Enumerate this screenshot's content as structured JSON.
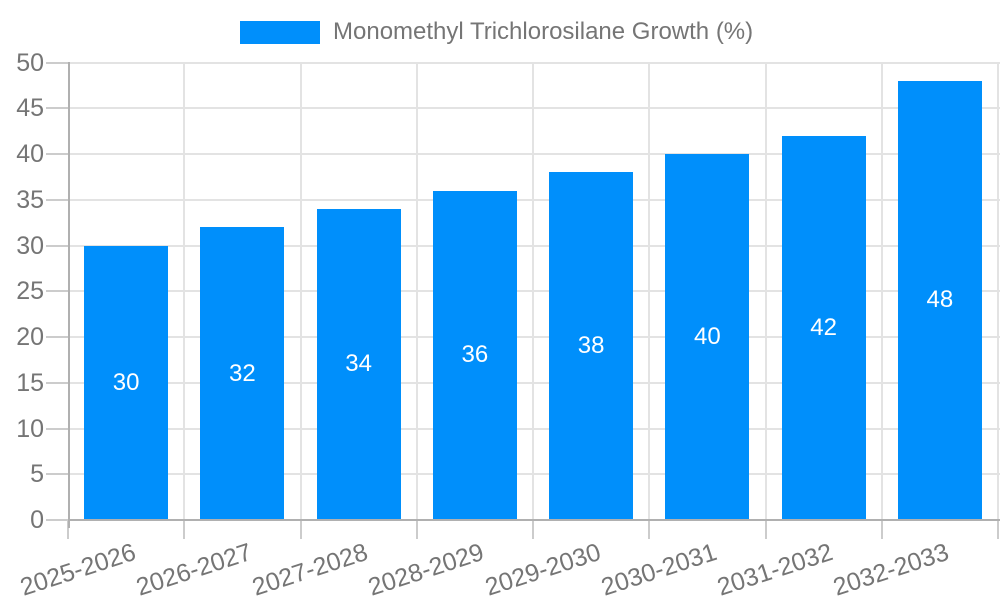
{
  "legend": {
    "label": "Monomethyl Trichlorosilane Growth (%)"
  },
  "chart_data": {
    "type": "bar",
    "title": "Monomethyl Trichlorosilane Growth (%)",
    "series": [
      {
        "name": "Monomethyl Trichlorosilane Growth (%)",
        "values": [
          30,
          32,
          34,
          36,
          38,
          40,
          42,
          48
        ]
      }
    ],
    "categories": [
      "2025-2026",
      "2026-2027",
      "2027-2028",
      "2028-2029",
      "2029-2030",
      "2030-2031",
      "2031-2032",
      "2032-2033"
    ],
    "value_labels": [
      "30",
      "32",
      "34",
      "36",
      "38",
      "40",
      "42",
      "48"
    ],
    "xlabel": "",
    "ylabel": "",
    "ylim": [
      0,
      50
    ],
    "yticks": [
      0,
      5,
      10,
      15,
      20,
      25,
      30,
      35,
      40,
      45,
      50
    ],
    "grid": true,
    "legend_position": "top",
    "colors": {
      "bar": "#008ffb",
      "value_label": "#ffffff",
      "axis_text": "#757575",
      "gridline": "#e3e3e3",
      "axis_line": "#b0b0b0",
      "tick": "#cccccc",
      "background": "#ffffff"
    }
  }
}
